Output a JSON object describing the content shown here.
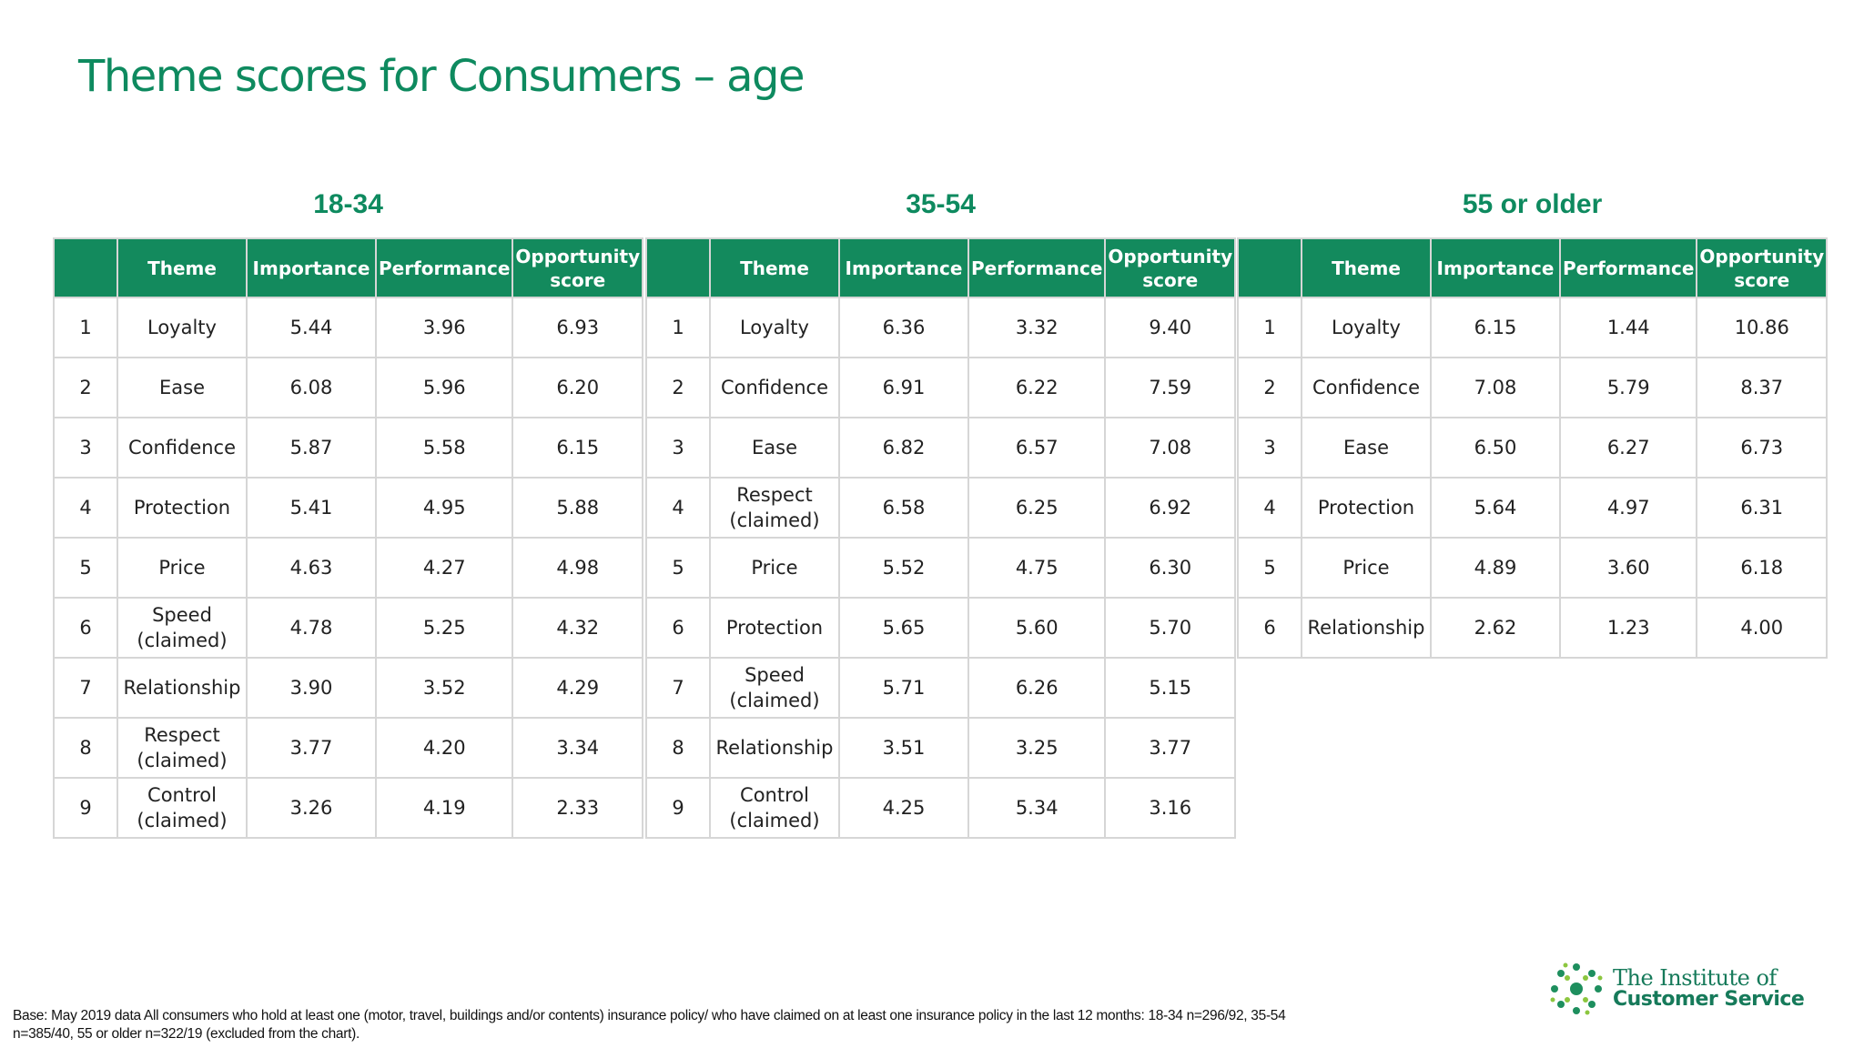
{
  "title": "Theme scores for Consumers – age",
  "columns": {
    "rank": "",
    "theme": "Theme",
    "importance": "Importance",
    "performance": "Performance",
    "opportunity": "Opportunity score"
  },
  "groups": [
    {
      "label": "18-34",
      "rows": [
        {
          "rank": "1",
          "theme": "Loyalty",
          "importance": "5.44",
          "performance": "3.96",
          "opportunity": "6.93"
        },
        {
          "rank": "2",
          "theme": "Ease",
          "importance": "6.08",
          "performance": "5.96",
          "opportunity": "6.20"
        },
        {
          "rank": "3",
          "theme": "Confidence",
          "importance": "5.87",
          "performance": "5.58",
          "opportunity": "6.15"
        },
        {
          "rank": "4",
          "theme": "Protection",
          "importance": "5.41",
          "performance": "4.95",
          "opportunity": "5.88"
        },
        {
          "rank": "5",
          "theme": "Price",
          "importance": "4.63",
          "performance": "4.27",
          "opportunity": "4.98"
        },
        {
          "rank": "6",
          "theme": "Speed (claimed)",
          "importance": "4.78",
          "performance": "5.25",
          "opportunity": "4.32"
        },
        {
          "rank": "7",
          "theme": "Relationship",
          "importance": "3.90",
          "performance": "3.52",
          "opportunity": "4.29"
        },
        {
          "rank": "8",
          "theme": "Respect (claimed)",
          "importance": "3.77",
          "performance": "4.20",
          "opportunity": "3.34"
        },
        {
          "rank": "9",
          "theme": "Control (claimed)",
          "importance": "3.26",
          "performance": "4.19",
          "opportunity": "2.33"
        }
      ]
    },
    {
      "label": "35-54",
      "rows": [
        {
          "rank": "1",
          "theme": "Loyalty",
          "importance": "6.36",
          "performance": "3.32",
          "opportunity": "9.40"
        },
        {
          "rank": "2",
          "theme": "Confidence",
          "importance": "6.91",
          "performance": "6.22",
          "opportunity": "7.59"
        },
        {
          "rank": "3",
          "theme": "Ease",
          "importance": "6.82",
          "performance": "6.57",
          "opportunity": "7.08"
        },
        {
          "rank": "4",
          "theme": "Respect (claimed)",
          "importance": "6.58",
          "performance": "6.25",
          "opportunity": "6.92"
        },
        {
          "rank": "5",
          "theme": "Price",
          "importance": "5.52",
          "performance": "4.75",
          "opportunity": "6.30"
        },
        {
          "rank": "6",
          "theme": "Protection",
          "importance": "5.65",
          "performance": "5.60",
          "opportunity": "5.70"
        },
        {
          "rank": "7",
          "theme": "Speed (claimed)",
          "importance": "5.71",
          "performance": "6.26",
          "opportunity": "5.15"
        },
        {
          "rank": "8",
          "theme": "Relationship",
          "importance": "3.51",
          "performance": "3.25",
          "opportunity": "3.77"
        },
        {
          "rank": "9",
          "theme": "Control (claimed)",
          "importance": "4.25",
          "performance": "5.34",
          "opportunity": "3.16"
        }
      ]
    },
    {
      "label": "55 or older",
      "rows": [
        {
          "rank": "1",
          "theme": "Loyalty",
          "importance": "6.15",
          "performance": "1.44",
          "opportunity": "10.86"
        },
        {
          "rank": "2",
          "theme": "Confidence",
          "importance": "7.08",
          "performance": "5.79",
          "opportunity": "8.37"
        },
        {
          "rank": "3",
          "theme": "Ease",
          "importance": "6.50",
          "performance": "6.27",
          "opportunity": "6.73"
        },
        {
          "rank": "4",
          "theme": "Protection",
          "importance": "5.64",
          "performance": "4.97",
          "opportunity": "6.31"
        },
        {
          "rank": "5",
          "theme": "Price",
          "importance": "4.89",
          "performance": "3.60",
          "opportunity": "6.18"
        },
        {
          "rank": "6",
          "theme": "Relationship",
          "importance": "2.62",
          "performance": "1.23",
          "opportunity": "4.00"
        }
      ]
    }
  ],
  "footnote": "Base: May 2019 data All consumers who hold at least one (motor, travel, buildings and/or contents) insurance policy/ who have claimed on at least one insurance policy in the last 12 months: 18-34 n=296/92, 35-54 n=385/40, 55 or older n=322/19 (excluded from the chart).",
  "logo": {
    "line1": "The Institute of",
    "line2": "Customer Service",
    "icon": "dotted-circle-logo-icon"
  },
  "colors": {
    "brand_green": "#138a5d",
    "title_green": "#0e8a5f",
    "border": "#d6d6d6"
  }
}
